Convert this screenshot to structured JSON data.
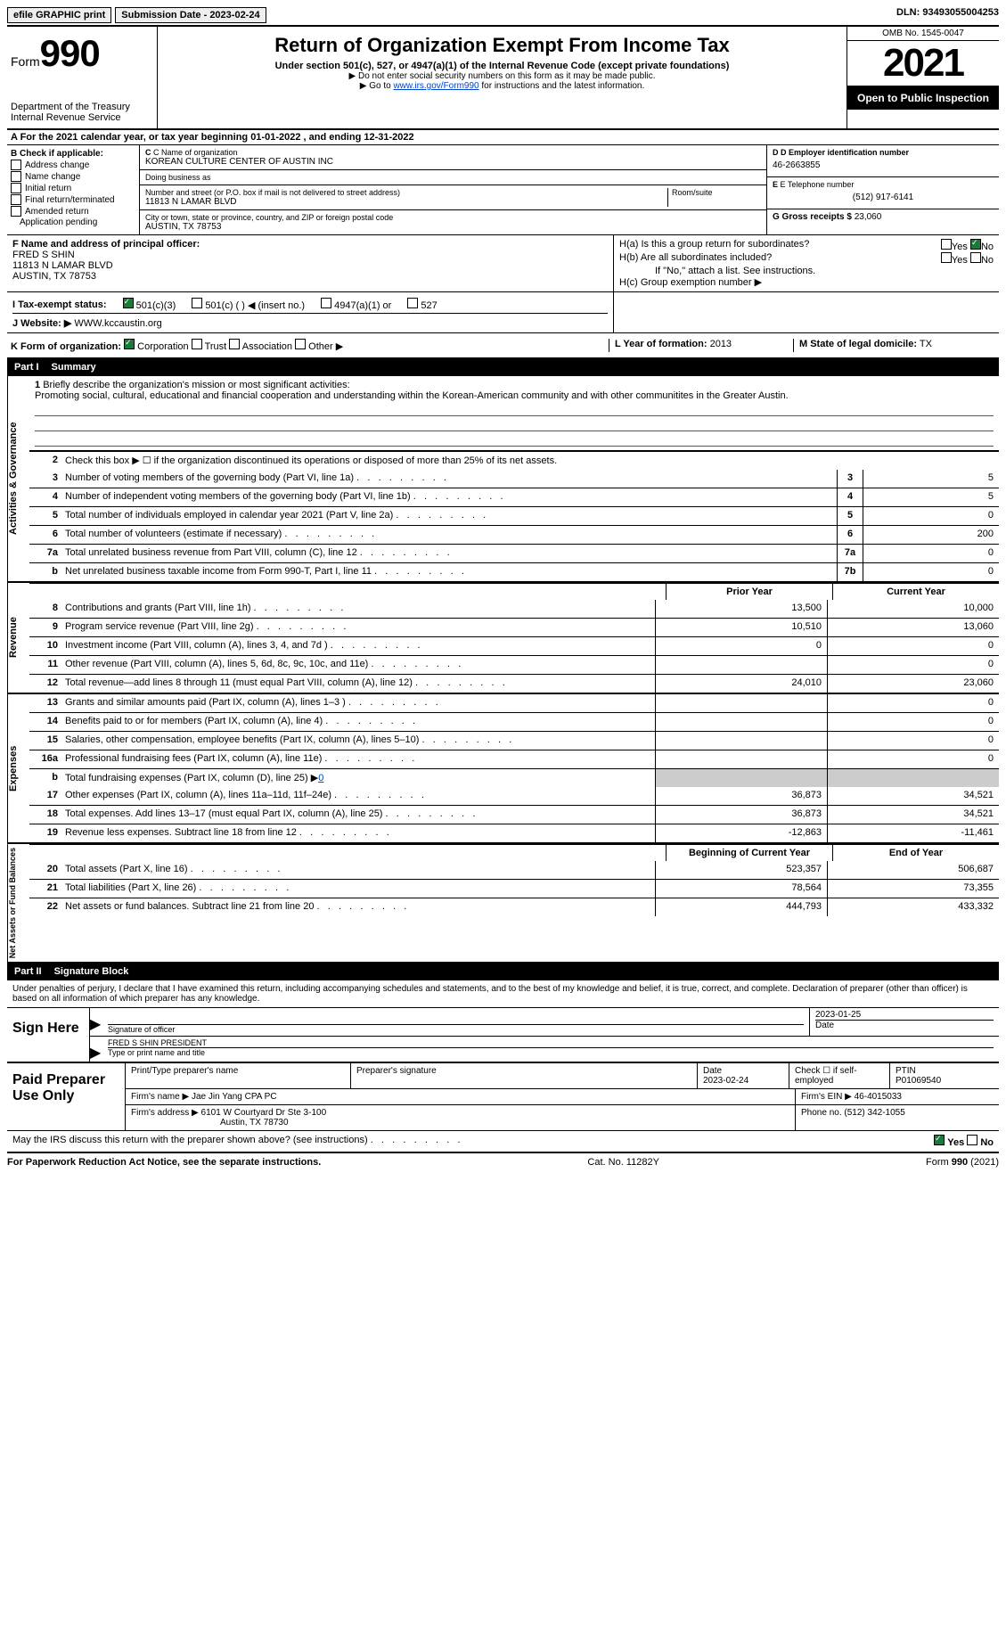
{
  "topbar": {
    "efile": "efile GRAPHIC print",
    "submission": "Submission Date - 2023-02-24",
    "dln": "DLN: 93493055004253"
  },
  "header": {
    "form_word": "Form",
    "form_num": "990",
    "dept": "Department of the Treasury",
    "irs": "Internal Revenue Service",
    "title": "Return of Organization Exempt From Income Tax",
    "subtitle": "Under section 501(c), 527, or 4947(a)(1) of the Internal Revenue Code (except private foundations)",
    "note1": "▶ Do not enter social security numbers on this form as it may be made public.",
    "note2_pre": "▶ Go to ",
    "note2_link": "www.irs.gov/Form990",
    "note2_post": " for instructions and the latest information.",
    "omb": "OMB No. 1545-0047",
    "year": "2021",
    "inspect": "Open to Public Inspection"
  },
  "row_a": "A For the 2021 calendar year, or tax year beginning 01-01-2022   , and ending 12-31-2022",
  "col_b": {
    "heading": "B Check if applicable:",
    "items": [
      "Address change",
      "Name change",
      "Initial return",
      "Final return/terminated",
      "Amended return",
      "Application pending"
    ]
  },
  "col_c": {
    "name_label": "C Name of organization",
    "name": "KOREAN CULTURE CENTER OF AUSTIN INC",
    "dba_label": "Doing business as",
    "dba": "",
    "street_label": "Number and street (or P.O. box if mail is not delivered to street address)",
    "room_label": "Room/suite",
    "street": "11813 N LAMAR BLVD",
    "city_label": "City or town, state or province, country, and ZIP or foreign postal code",
    "city": "AUSTIN, TX  78753"
  },
  "col_d": {
    "ein_label": "D Employer identification number",
    "ein": "46-2663855",
    "phone_label": "E Telephone number",
    "phone": "(512) 917-6141",
    "gross_label": "G Gross receipts $",
    "gross": "23,060"
  },
  "section_f": {
    "label": "F Name and address of principal officer:",
    "name": "FRED S SHIN",
    "addr1": "11813 N LAMAR BLVD",
    "addr2": "AUSTIN, TX  78753"
  },
  "section_h": {
    "ha": "H(a)  Is this a group return for subordinates?",
    "hb": "H(b)  Are all subordinates included?",
    "hb_note": "If \"No,\" attach a list. See instructions.",
    "hc": "H(c)  Group exemption number ▶",
    "yes": "Yes",
    "no": "No"
  },
  "status": {
    "label": "I  Tax-exempt status:",
    "s1": "501(c)(3)",
    "s2": "501(c) (  ) ◀ (insert no.)",
    "s3": "4947(a)(1) or",
    "s4": "527"
  },
  "website": {
    "label": "J  Website: ▶",
    "value": "WWW.kccaustin.org"
  },
  "row_k": {
    "label": "K Form of organization:",
    "o1": "Corporation",
    "o2": "Trust",
    "o3": "Association",
    "o4": "Other ▶",
    "l_label": "L Year of formation:",
    "l_val": "2013",
    "m_label": "M State of legal domicile:",
    "m_val": "TX"
  },
  "part1": {
    "label": "Part I",
    "title": "Summary"
  },
  "mission": {
    "num": "1",
    "label": "Briefly describe the organization's mission or most significant activities:",
    "text": "Promoting social, cultural, educational and financial cooperation and understanding within the Korean-American community and with other communitites in the Greater Austin."
  },
  "line2": {
    "num": "2",
    "desc": "Check this box ▶ ☐ if the organization discontinued its operations or disposed of more than 25% of its net assets."
  },
  "gov_lines": [
    {
      "num": "3",
      "desc": "Number of voting members of the governing body (Part VI, line 1a)",
      "box": "3",
      "val": "5"
    },
    {
      "num": "4",
      "desc": "Number of independent voting members of the governing body (Part VI, line 1b)",
      "box": "4",
      "val": "5"
    },
    {
      "num": "5",
      "desc": "Total number of individuals employed in calendar year 2021 (Part V, line 2a)",
      "box": "5",
      "val": "0"
    },
    {
      "num": "6",
      "desc": "Total number of volunteers (estimate if necessary)",
      "box": "6",
      "val": "200"
    },
    {
      "num": "7a",
      "desc": "Total unrelated business revenue from Part VIII, column (C), line 12",
      "box": "7a",
      "val": "0"
    },
    {
      "num": "b",
      "desc": "Net unrelated business taxable income from Form 990-T, Part I, line 11",
      "box": "7b",
      "val": "0"
    }
  ],
  "rev_header": {
    "prior": "Prior Year",
    "current": "Current Year"
  },
  "rev_lines": [
    {
      "num": "8",
      "desc": "Contributions and grants (Part VIII, line 1h)",
      "p": "13,500",
      "c": "10,000"
    },
    {
      "num": "9",
      "desc": "Program service revenue (Part VIII, line 2g)",
      "p": "10,510",
      "c": "13,060"
    },
    {
      "num": "10",
      "desc": "Investment income (Part VIII, column (A), lines 3, 4, and 7d )",
      "p": "0",
      "c": "0"
    },
    {
      "num": "11",
      "desc": "Other revenue (Part VIII, column (A), lines 5, 6d, 8c, 9c, 10c, and 11e)",
      "p": "",
      "c": "0"
    },
    {
      "num": "12",
      "desc": "Total revenue—add lines 8 through 11 (must equal Part VIII, column (A), line 12)",
      "p": "24,010",
      "c": "23,060"
    }
  ],
  "exp_lines": [
    {
      "num": "13",
      "desc": "Grants and similar amounts paid (Part IX, column (A), lines 1–3 )",
      "p": "",
      "c": "0"
    },
    {
      "num": "14",
      "desc": "Benefits paid to or for members (Part IX, column (A), line 4)",
      "p": "",
      "c": "0"
    },
    {
      "num": "15",
      "desc": "Salaries, other compensation, employee benefits (Part IX, column (A), lines 5–10)",
      "p": "",
      "c": "0"
    },
    {
      "num": "16a",
      "desc": "Professional fundraising fees (Part IX, column (A), line 11e)",
      "p": "",
      "c": "0"
    }
  ],
  "exp_16b": {
    "num": "b",
    "desc": "Total fundraising expenses (Part IX, column (D), line 25) ▶",
    "val": "0"
  },
  "exp_lines2": [
    {
      "num": "17",
      "desc": "Other expenses (Part IX, column (A), lines 11a–11d, 11f–24e)",
      "p": "36,873",
      "c": "34,521"
    },
    {
      "num": "18",
      "desc": "Total expenses. Add lines 13–17 (must equal Part IX, column (A), line 25)",
      "p": "36,873",
      "c": "34,521"
    },
    {
      "num": "19",
      "desc": "Revenue less expenses. Subtract line 18 from line 12",
      "p": "-12,863",
      "c": "-11,461"
    }
  ],
  "net_header": {
    "begin": "Beginning of Current Year",
    "end": "End of Year"
  },
  "net_lines": [
    {
      "num": "20",
      "desc": "Total assets (Part X, line 16)",
      "p": "523,357",
      "c": "506,687"
    },
    {
      "num": "21",
      "desc": "Total liabilities (Part X, line 26)",
      "p": "78,564",
      "c": "73,355"
    },
    {
      "num": "22",
      "desc": "Net assets or fund balances. Subtract line 21 from line 20",
      "p": "444,793",
      "c": "433,332"
    }
  ],
  "rot_labels": {
    "gov": "Activities & Governance",
    "rev": "Revenue",
    "exp": "Expenses",
    "net": "Net Assets or Fund Balances"
  },
  "part2": {
    "label": "Part II",
    "title": "Signature Block"
  },
  "sig_intro": "Under penalties of perjury, I declare that I have examined this return, including accompanying schedules and statements, and to the best of my knowledge and belief, it is true, correct, and complete. Declaration of preparer (other than officer) is based on all information of which preparer has any knowledge.",
  "sign": {
    "heading": "Sign Here",
    "sig_label": "Signature of officer",
    "date": "2023-01-25",
    "date_label": "Date",
    "name": "FRED S SHIN PRESIDENT",
    "name_label": "Type or print name and title"
  },
  "preparer": {
    "heading": "Paid Preparer Use Only",
    "r1_c1": "Print/Type preparer's name",
    "r1_c2": "Preparer's signature",
    "r1_c3_label": "Date",
    "r1_c3": "2023-02-24",
    "r1_c4_label": "Check ☐ if self-employed",
    "r1_c5_label": "PTIN",
    "r1_c5": "P01069540",
    "r2_label": "Firm's name    ▶",
    "r2_val": "Jae Jin Yang CPA PC",
    "r2b_label": "Firm's EIN ▶",
    "r2b_val": "46-4015033",
    "r3_label": "Firm's address ▶",
    "r3_val1": "6101 W Courtyard Dr Ste 3-100",
    "r3_val2": "Austin, TX  78730",
    "r3b_label": "Phone no.",
    "r3b_val": "(512) 342-1055"
  },
  "discuss": {
    "text": "May the IRS discuss this return with the preparer shown above? (see instructions)",
    "yes": "Yes",
    "no": "No"
  },
  "footer": {
    "left": "For Paperwork Reduction Act Notice, see the separate instructions.",
    "mid": "Cat. No. 11282Y",
    "right": "Form 990 (2021)"
  }
}
